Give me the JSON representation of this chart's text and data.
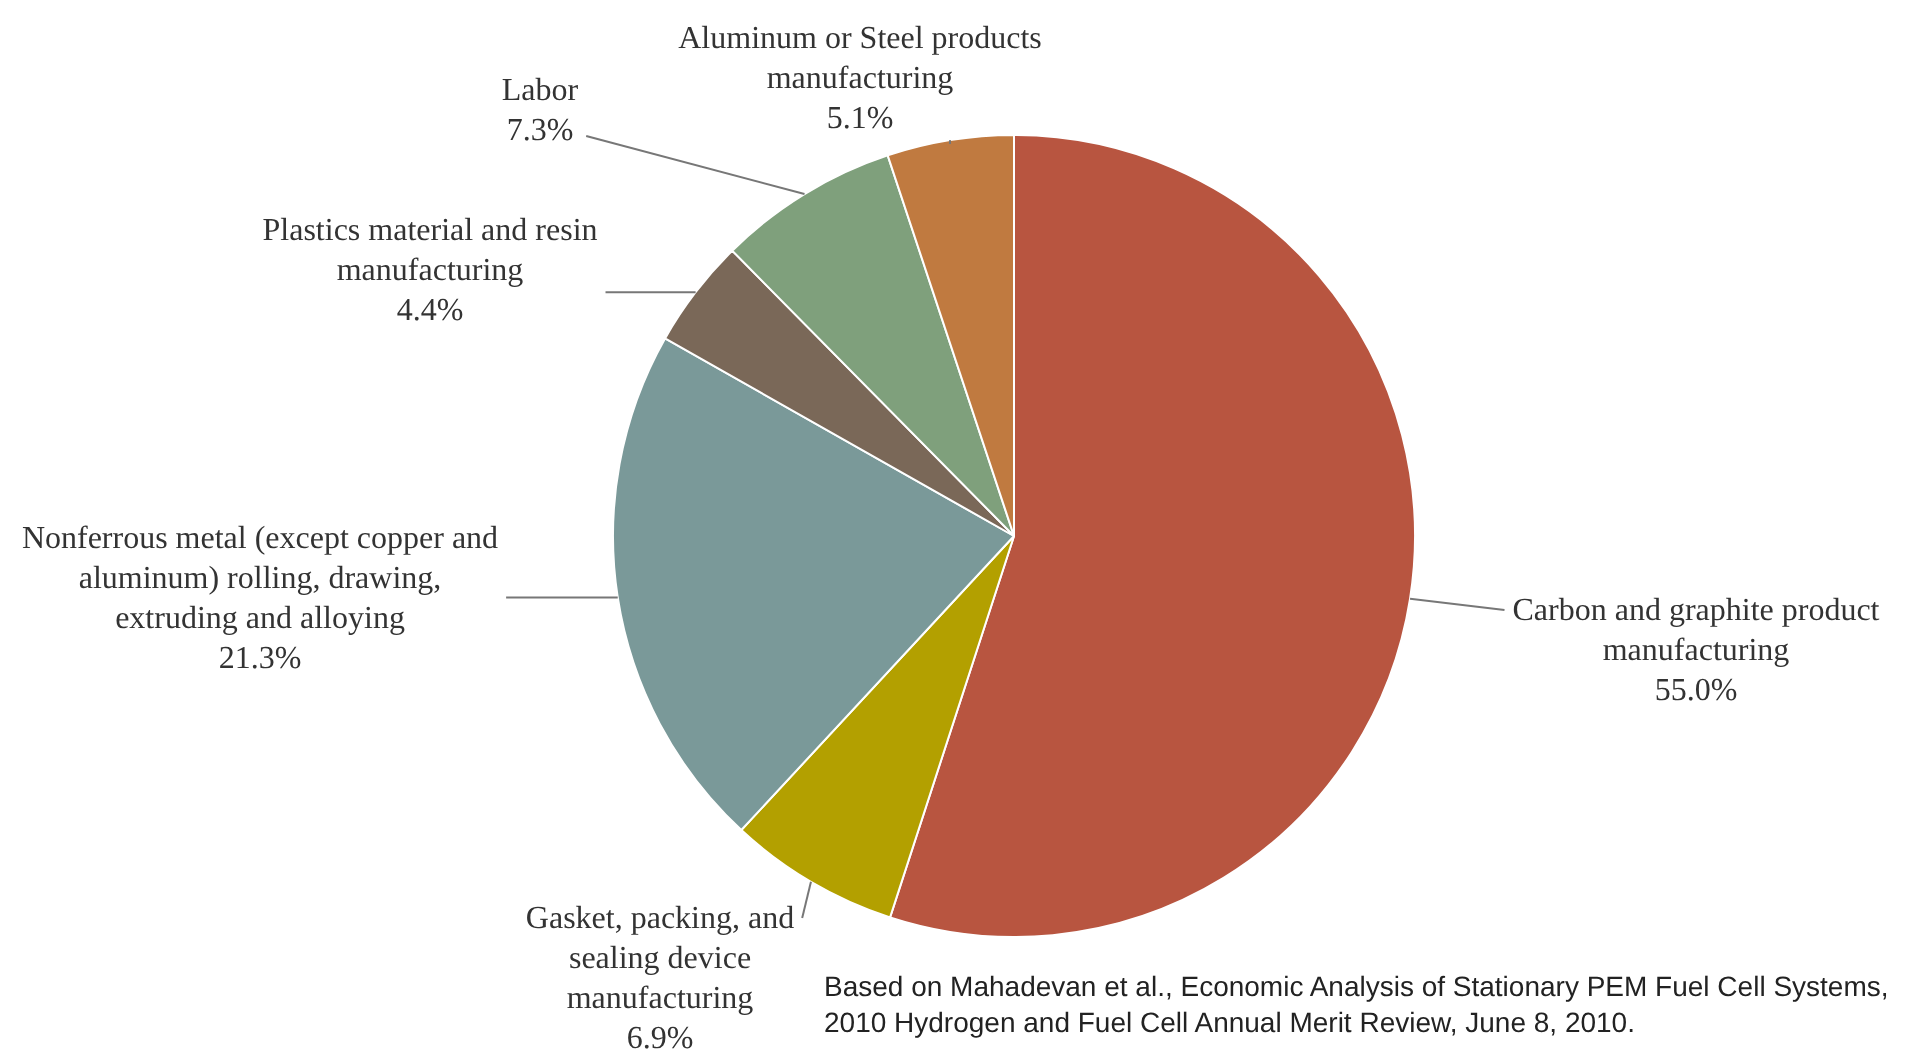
{
  "chart_data": {
    "type": "pie",
    "categories": [
      "Carbon and graphite product manufacturing",
      "Gasket, packing, and sealing device manufacturing",
      "Nonferrous metal (except copper and aluminum) rolling, drawing, extruding and alloying",
      "Plastics material and resin manufacturing",
      "Labor",
      "Aluminum or Steel products manufacturing"
    ],
    "values": [
      55.0,
      6.9,
      21.3,
      4.4,
      7.3,
      5.1
    ],
    "value_labels": [
      "55.0%",
      "6.9%",
      "21.3%",
      "4.4%",
      "7.3%",
      "5.1%"
    ],
    "colors": [
      "#b85540",
      "#b3a000",
      "#7a9999",
      "#7a6858",
      "#7fa07c",
      "#c07a40"
    ],
    "legend": false,
    "annotations": [
      "Based on Mahadevan et al., Economic Analysis of Stationary PEM Fuel Cell Systems, 2010 Hydrogen and Fuel Cell Annual Merit Review, June 8, 2010."
    ]
  }
}
